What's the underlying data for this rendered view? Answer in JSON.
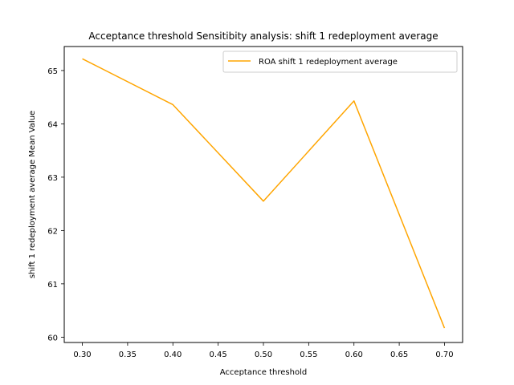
{
  "chart_data": {
    "type": "line",
    "title": "Acceptance threshold Sensitibity analysis: shift 1 redeployment average",
    "xlabel": "Acceptance threshold",
    "ylabel": "shift 1 redeployment average Mean Value",
    "x": [
      0.3,
      0.4,
      0.5,
      0.6,
      0.7
    ],
    "xticks": [
      "0.30",
      "0.35",
      "0.40",
      "0.45",
      "0.50",
      "0.55",
      "0.60",
      "0.65",
      "0.70"
    ],
    "yticks": [
      "60",
      "61",
      "62",
      "63",
      "64",
      "65"
    ],
    "xlim": [
      0.28,
      0.72
    ],
    "ylim": [
      59.9,
      65.45
    ],
    "grid": false,
    "legend_position": "top-right",
    "series": [
      {
        "name": "ROA shift 1 redeployment average",
        "color": "#ffa500",
        "values": [
          65.22,
          64.36,
          62.55,
          64.43,
          60.17
        ]
      }
    ]
  }
}
